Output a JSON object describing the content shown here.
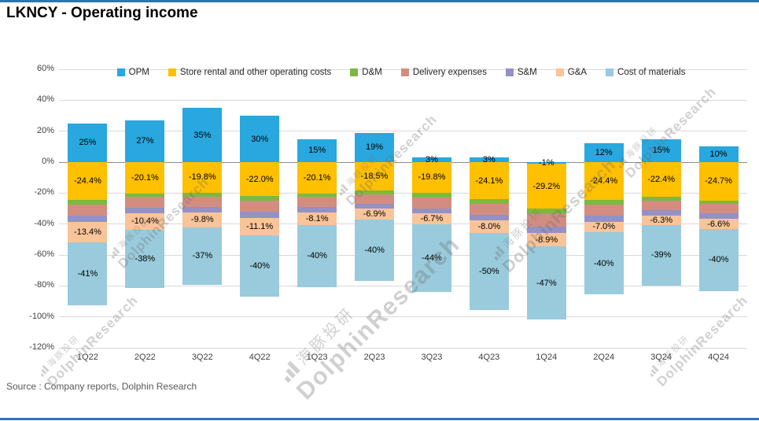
{
  "header": {
    "title": "LKNCY - Operating income"
  },
  "footer": {
    "source": "Source : Company reports, Dolphin Research"
  },
  "watermark": {
    "cn": "海豚投研",
    "en": "DolphinResearch"
  },
  "colors": {
    "accent_line": "#2E74B5",
    "grid": "#D9D9D9",
    "zero_line": "#8C8C8C",
    "axis_text": "#404040"
  },
  "chart_data": {
    "type": "bar",
    "stacked": true,
    "title": "LKNCY - Operating income",
    "legend_position": "top",
    "grid": true,
    "categories": [
      "1Q22",
      "2Q22",
      "3Q22",
      "4Q22",
      "1Q23",
      "2Q23",
      "3Q23",
      "4Q23",
      "1Q24",
      "2Q24",
      "3Q24",
      "4Q24"
    ],
    "y_axis": {
      "min": -120,
      "max": 60,
      "step": 20,
      "tick_labels": [
        "60%",
        "40%",
        "20%",
        "0%",
        "-20%",
        "-40%",
        "-60%",
        "-80%",
        "-100%",
        "-120%"
      ]
    },
    "series": [
      {
        "name": "OPM",
        "color": "#29A7DF",
        "values": [
          25,
          27,
          35,
          30,
          15,
          19,
          3,
          3,
          -1,
          12,
          15,
          10
        ],
        "labels": [
          "25%",
          "27%",
          "35%",
          "30%",
          "15%",
          "19%",
          "3%",
          "3%",
          "-1%",
          "12%",
          "15%",
          "10%"
        ]
      },
      {
        "name": "Store rental and other operating costs",
        "color": "#FFC000",
        "values": [
          -24.4,
          -20.1,
          -19.8,
          -22.0,
          -20.1,
          -18.5,
          -19.8,
          -24.1,
          -29.2,
          -24.4,
          -22.4,
          -24.7
        ],
        "labels": [
          "-24.4%",
          "-20.1%",
          "-19.8%",
          "-22.0%",
          "-20.1%",
          "-18.5%",
          "-19.8%",
          "-24.1%",
          "-29.2%",
          "-24.4%",
          "-22.4%",
          "-24.7%"
        ]
      },
      {
        "name": "D&M",
        "color": "#7CB940",
        "values": [
          -3,
          -2.5,
          -2.5,
          -3,
          -2.5,
          -2.5,
          -3,
          -3,
          -3.5,
          -3,
          -2.5,
          -2.5
        ]
      },
      {
        "name": "Delivery expenses",
        "color": "#D38D80",
        "values": [
          -7,
          -7,
          -6.5,
          -7,
          -6.5,
          -6,
          -7,
          -7,
          -8,
          -7,
          -6,
          -6
        ]
      },
      {
        "name": "S&M",
        "color": "#9491C6",
        "values": [
          -4,
          -3.5,
          -3.5,
          -4,
          -3.5,
          -3,
          -3.5,
          -3.5,
          -4,
          -4,
          -3.5,
          -3.5
        ]
      },
      {
        "name": "G&A",
        "color": "#F9C499",
        "values": [
          -13.4,
          -10.4,
          -9.8,
          -11.1,
          -8.1,
          -6.9,
          -6.7,
          -8.0,
          -8.9,
          -7.0,
          -6.3,
          -6.6
        ],
        "labels": [
          "-13.4%",
          "-10.4%",
          "-9.8%",
          "-11.1%",
          "-8.1%",
          "-6.9%",
          "-6.7%",
          "-8.0%",
          "-8.9%",
          "-7.0%",
          "-6.3%",
          "-6.6%"
        ]
      },
      {
        "name": "Cost of materials",
        "color": "#99CBDC",
        "values": [
          -41,
          -38,
          -37,
          -40,
          -40,
          -40,
          -44,
          -50,
          -47,
          -40,
          -39,
          -40
        ],
        "labels": [
          "-41%",
          "-38%",
          "-37%",
          "-40%",
          "-40%",
          "-40%",
          "-44%",
          "-50%",
          "-47%",
          "-40%",
          "-39%",
          "-40%"
        ]
      }
    ]
  }
}
